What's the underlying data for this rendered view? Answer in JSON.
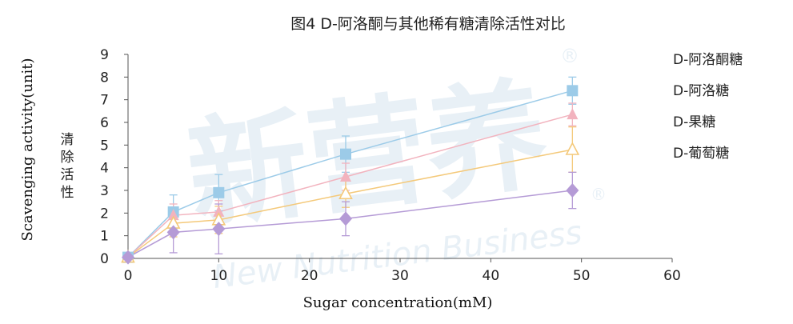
{
  "chart_data": {
    "type": "line",
    "title": "图4 D-阿洛酮与其他稀有糖清除活性对比",
    "xlabel": "Sugar concentration(mM)",
    "ylabel": "Scavenging activity(unit)",
    "ylabel_cn": "清除活性",
    "xlim": [
      0,
      60
    ],
    "ylim": [
      0,
      9
    ],
    "x_ticks": [
      0,
      10,
      20,
      30,
      40,
      50,
      60
    ],
    "y_ticks": [
      0,
      1,
      2,
      3,
      4,
      5,
      6,
      7,
      8,
      9
    ],
    "grid": false,
    "legend_position": "right",
    "x": [
      0,
      5,
      10,
      24,
      49
    ],
    "series": [
      {
        "name": "D-阿洛酮糖",
        "color": "#9ccbe8",
        "marker": "square",
        "values": [
          0.05,
          2.05,
          2.9,
          4.6,
          7.4
        ],
        "errors": [
          0.05,
          0.75,
          0.8,
          0.8,
          0.6
        ]
      },
      {
        "name": "D-阿洛糖",
        "color": "#f2b3be",
        "marker": "triangle",
        "values": [
          0.05,
          1.9,
          2.05,
          3.6,
          6.35
        ],
        "errors": [
          0.05,
          0.5,
          0.5,
          0.6,
          0.5
        ]
      },
      {
        "name": "D-果糖",
        "color": "#f4c97a",
        "marker": "triangle-open",
        "values": [
          0.05,
          1.55,
          1.7,
          2.85,
          4.8
        ],
        "errors": [
          0.05,
          0.6,
          0.6,
          0.6,
          1.0
        ]
      },
      {
        "name": "D-葡萄糖",
        "color": "#b59bd6",
        "marker": "diamond",
        "values": [
          0.05,
          1.15,
          1.3,
          1.75,
          3.0
        ],
        "errors": [
          0.05,
          0.9,
          1.1,
          0.75,
          0.8
        ]
      }
    ]
  },
  "watermark": {
    "main": "新营养",
    "sub": "New Nutrition Business",
    "mark": "®"
  }
}
